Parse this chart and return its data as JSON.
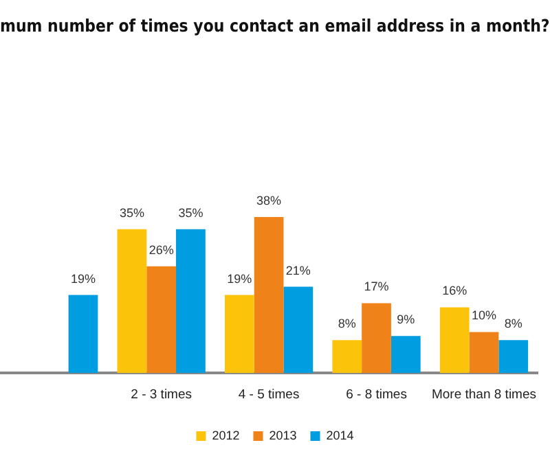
{
  "chart_data": {
    "type": "bar",
    "title": "mum number of times you contact an email address in a month?",
    "categories": [
      null,
      "2 - 3 times",
      "4 - 5 times",
      "6 - 8 times",
      "More than 8 times"
    ],
    "legend": "bottom",
    "grid": false,
    "tick_labels": "x",
    "series": [
      {
        "name": "2012",
        "color": "#fcc30b",
        "values": [
          null,
          35,
          19,
          8,
          16
        ],
        "value_labels": [
          null,
          "35%",
          "19%",
          "8%",
          "16%"
        ]
      },
      {
        "name": "2013",
        "color": "#f0821a",
        "values": [
          null,
          26,
          38,
          17,
          10
        ],
        "value_labels": [
          null,
          "26%",
          "38%",
          "17%",
          "10%"
        ]
      },
      {
        "name": "2014",
        "color": "#009de0",
        "values": [
          19,
          35,
          21,
          9,
          8
        ],
        "value_labels": [
          "19%",
          "35%",
          "21%",
          "9%",
          "8%"
        ]
      }
    ]
  }
}
